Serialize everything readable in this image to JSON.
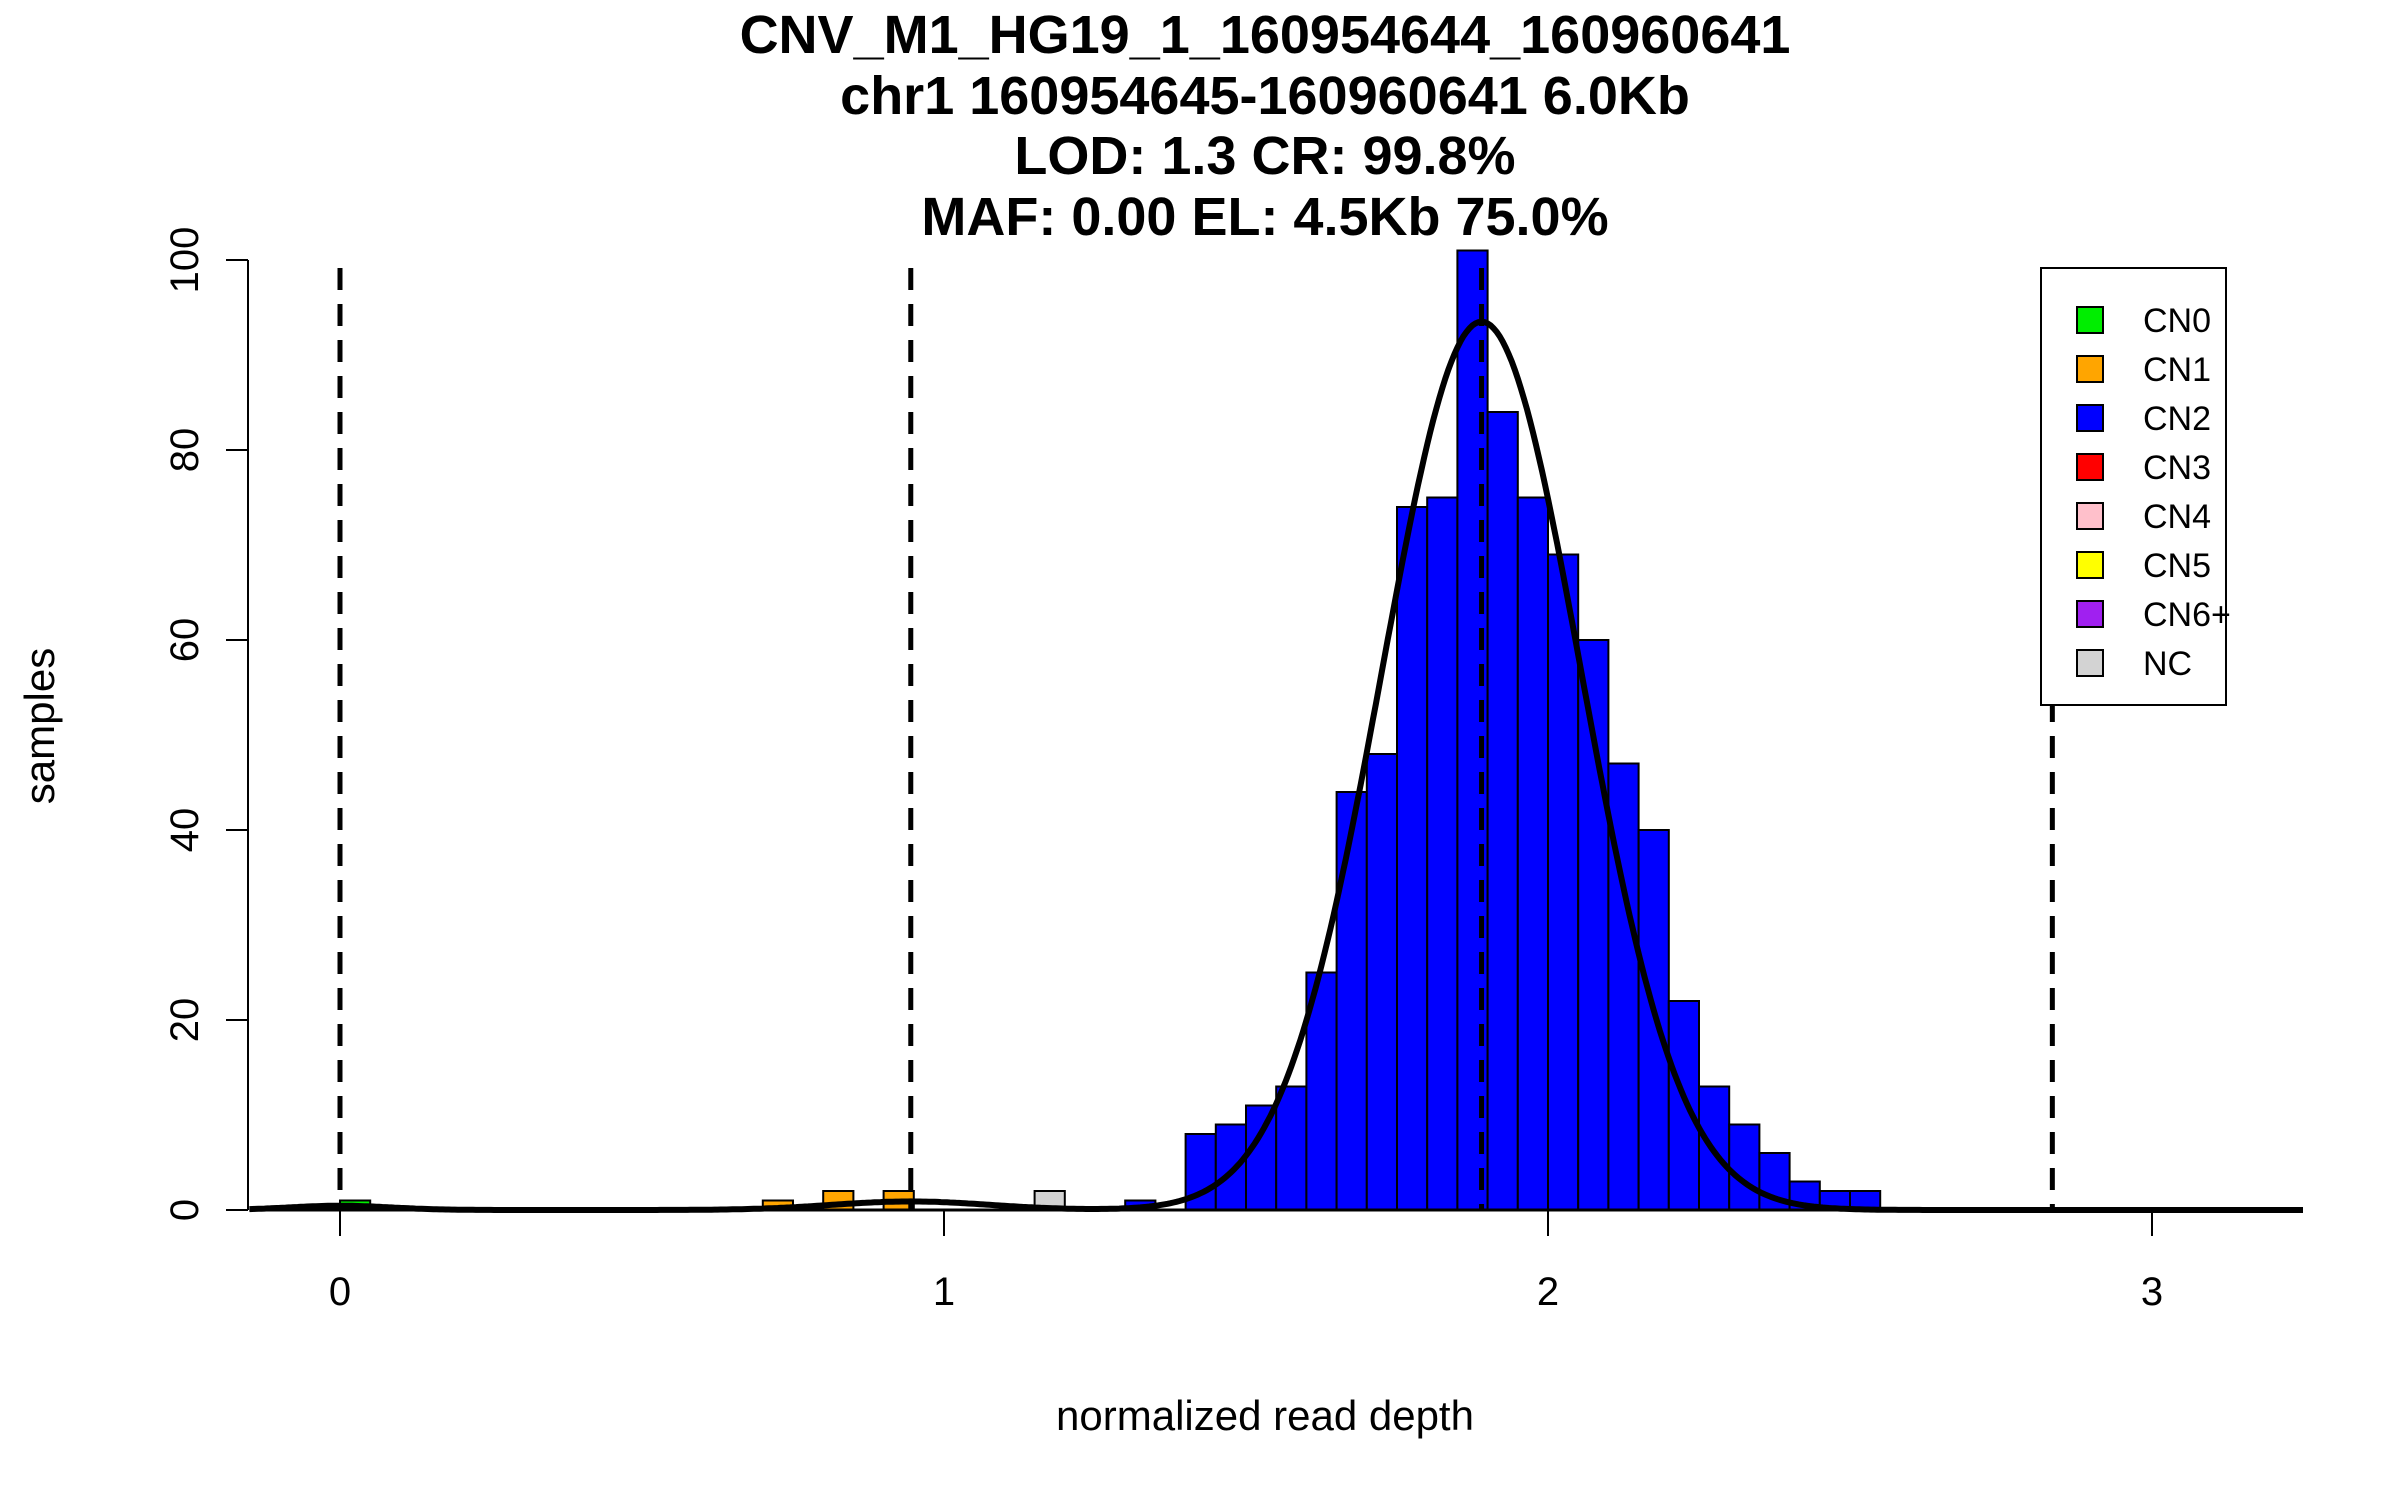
{
  "chart_data": {
    "type": "bar",
    "title_lines": [
      "CNV_M1_HG19_1_160954644_160960641",
      "chr1 160954645-160960641 6.0Kb",
      "LOD: 1.3 CR: 99.8%",
      "MAF: 0.00 EL: 4.5Kb 75.0%"
    ],
    "xlabel": "normalized read depth",
    "ylabel": "samples",
    "xlim": [
      -0.15,
      3.25
    ],
    "ylim": [
      0,
      100
    ],
    "x_ticks": [
      {
        "value": 0,
        "label": "0"
      },
      {
        "value": 1,
        "label": "1"
      },
      {
        "value": 2,
        "label": "2"
      },
      {
        "value": 3,
        "label": "3"
      }
    ],
    "y_ticks": [
      {
        "value": 0,
        "label": "0"
      },
      {
        "value": 20,
        "label": "20"
      },
      {
        "value": 40,
        "label": "40"
      },
      {
        "value": 60,
        "label": "60"
      },
      {
        "value": 80,
        "label": "80"
      },
      {
        "value": 100,
        "label": "100"
      }
    ],
    "bin_width": 0.05,
    "bars": [
      {
        "x0": 0.0,
        "count": 1,
        "cn": "CN0"
      },
      {
        "x0": 0.7,
        "count": 1,
        "cn": "CN1"
      },
      {
        "x0": 0.8,
        "count": 2,
        "cn": "CN1"
      },
      {
        "x0": 0.9,
        "count": 2,
        "cn": "CN1"
      },
      {
        "x0": 1.15,
        "count": 2,
        "cn": "NC"
      },
      {
        "x0": 1.3,
        "count": 1,
        "cn": "CN2"
      },
      {
        "x0": 1.4,
        "count": 8,
        "cn": "CN2"
      },
      {
        "x0": 1.45,
        "count": 9,
        "cn": "CN2"
      },
      {
        "x0": 1.5,
        "count": 11,
        "cn": "CN2"
      },
      {
        "x0": 1.55,
        "count": 13,
        "cn": "CN2"
      },
      {
        "x0": 1.6,
        "count": 25,
        "cn": "CN2"
      },
      {
        "x0": 1.65,
        "count": 44,
        "cn": "CN2"
      },
      {
        "x0": 1.7,
        "count": 48,
        "cn": "CN2"
      },
      {
        "x0": 1.75,
        "count": 74,
        "cn": "CN2"
      },
      {
        "x0": 1.8,
        "count": 75,
        "cn": "CN2"
      },
      {
        "x0": 1.85,
        "count": 101,
        "cn": "CN2"
      },
      {
        "x0": 1.9,
        "count": 84,
        "cn": "CN2"
      },
      {
        "x0": 1.95,
        "count": 75,
        "cn": "CN2"
      },
      {
        "x0": 2.0,
        "count": 69,
        "cn": "CN2"
      },
      {
        "x0": 2.05,
        "count": 60,
        "cn": "CN2"
      },
      {
        "x0": 2.1,
        "count": 47,
        "cn": "CN2"
      },
      {
        "x0": 2.15,
        "count": 40,
        "cn": "CN2"
      },
      {
        "x0": 2.2,
        "count": 22,
        "cn": "CN2"
      },
      {
        "x0": 2.25,
        "count": 13,
        "cn": "CN2"
      },
      {
        "x0": 2.3,
        "count": 9,
        "cn": "CN2"
      },
      {
        "x0": 2.35,
        "count": 6,
        "cn": "CN2"
      },
      {
        "x0": 2.4,
        "count": 3,
        "cn": "CN2"
      },
      {
        "x0": 2.45,
        "count": 2,
        "cn": "CN2"
      },
      {
        "x0": 2.5,
        "count": 2,
        "cn": "CN2"
      }
    ],
    "baseline_segments": [
      [
        0.05,
        0.23
      ],
      [
        0.44,
        0.65
      ],
      [
        1.35,
        1.4
      ],
      [
        2.55,
        3.12
      ]
    ],
    "vlines": [
      0.0,
      0.945,
      1.89,
      2.835
    ],
    "fit_components": [
      {
        "name": "CN0",
        "mean": 0.0,
        "sd": 0.085,
        "height": 0.45
      },
      {
        "name": "CN1",
        "mean": 0.945,
        "sd": 0.13,
        "height": 0.9
      },
      {
        "name": "CN2",
        "mean": 1.89,
        "sd": 0.165,
        "height": 93.5
      }
    ],
    "legend": {
      "placement": "top-right",
      "entries": [
        {
          "label": "CN0",
          "color": "#00ee00"
        },
        {
          "label": "CN1",
          "color": "#ffa500"
        },
        {
          "label": "CN2",
          "color": "#0000ff"
        },
        {
          "label": "CN3",
          "color": "#ff0000"
        },
        {
          "label": "CN4",
          "color": "#ffc0cb"
        },
        {
          "label": "CN5",
          "color": "#ffff00"
        },
        {
          "label": "CN6+",
          "color": "#a020f0"
        },
        {
          "label": "NC",
          "color": "#d3d3d3"
        }
      ]
    },
    "colors": {
      "CN0": "#00ee00",
      "CN1": "#ffa500",
      "CN2": "#0000ff",
      "CN3": "#ff0000",
      "CN4": "#ffc0cb",
      "CN5": "#ffff00",
      "CN6+": "#a020f0",
      "NC": "#d3d3d3"
    }
  }
}
